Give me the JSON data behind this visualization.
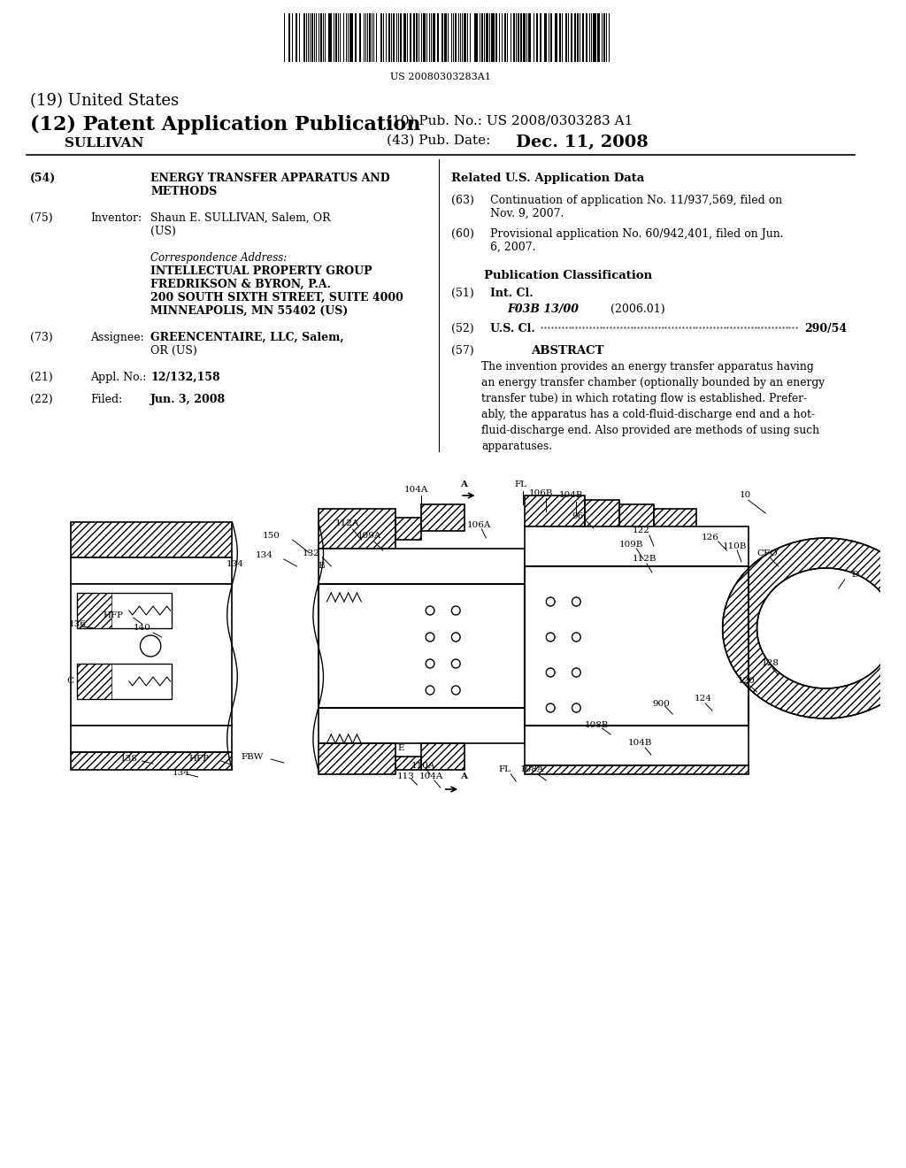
{
  "background_color": "#ffffff",
  "barcode_text": "US 20080303283A1",
  "patent_number": "US 2008/0303283 A1",
  "pub_date": "Dec. 11, 2008",
  "title_19": "(19) United States",
  "title_12": "(12) Patent Application Publication",
  "title_10": "(10) Pub. No.: US 2008/0303283 A1",
  "title_43": "(43) Pub. Date:",
  "inventor_name": "SULLIVAN",
  "section54_num": "(54)",
  "section54_title": "ENERGY TRANSFER APPARATUS AND METHODS",
  "section75_num": "(75)",
  "section75_label": "Inventor:",
  "section75_value": "Shaun E. SULLIVAN, Salem, OR (US)",
  "corr_address_label": "Correspondence Address:",
  "corr_address_body": "INTELLECTUAL PROPERTY GROUP\nFREDRIKSON & BYRON, P.A.\n200 SOUTH SIXTH STREET, SUITE 4000\nMINNEAPOLIS, MN 55402 (US)",
  "section73_num": "(73)",
  "section73_label": "Assignee:",
  "section73_value": "GREENCENTAIRE, LLC, Salem,\nOR (US)",
  "section21_num": "(21)",
  "section21_label": "Appl. No.:",
  "section21_value": "12/132,158",
  "section22_num": "(22)",
  "section22_label": "Filed:",
  "section22_value": "Jun. 3, 2008",
  "related_data_title": "Related U.S. Application Data",
  "section63_num": "(63)",
  "section63_value": "Continuation of application No. 11/937,569, filed on\nNov. 9, 2007.",
  "section60_num": "(60)",
  "section60_value": "Provisional application No. 60/942,401, filed on Jun.\n6, 2007.",
  "pub_class_title": "Publication Classification",
  "section51_num": "(51)",
  "section51_label": "Int. Cl.",
  "section51_class": "F03B 13/00",
  "section51_year": "(2006.01)",
  "section52_num": "(52)",
  "section52_label": "U.S. Cl.",
  "section52_value": "290/54",
  "section57_num": "(57)",
  "section57_label": "ABSTRACT",
  "abstract_text": "The invention provides an energy transfer apparatus having an energy transfer chamber (optionally bounded by an energy transfer tube) in which rotating flow is established. Preferably, the apparatus has a cold-fluid-discharge end and a hot-fluid-discharge end. Also provided are methods of using such apparatuses."
}
